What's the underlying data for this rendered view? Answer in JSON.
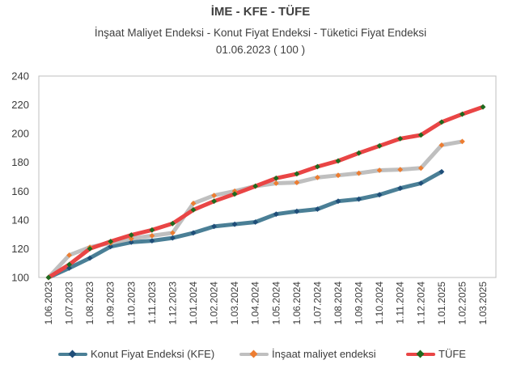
{
  "header": {
    "title": "İME - KFE - TÜFE",
    "subtitle": "İnşaat Maliyet Endeksi - Konut Fiyat Endeksi - Tüketici Fiyat Endeksi",
    "base": "01.06.2023 ( 100 )"
  },
  "chart_data": {
    "type": "line",
    "categories": [
      "1.06.2023",
      "1.07.2023",
      "1.08.2023",
      "1.09.2023",
      "1.10.2023",
      "1.11.2023",
      "1.12.2023",
      "1.01.2024",
      "1.02.2024",
      "1.03.2024",
      "1.04.2024",
      "1.05.2024",
      "1.06.2024",
      "1.07.2024",
      "1.08.2024",
      "1.09.2024",
      "1.10.2024",
      "1.11.2024",
      "1.12.2024",
      "1.01.2025",
      "1.02.2025",
      "1.03.2025"
    ],
    "ylim": [
      100,
      240
    ],
    "yticks": [
      100,
      120,
      140,
      160,
      180,
      200,
      220,
      240
    ],
    "grid": false,
    "legend_position": "bottom",
    "series": [
      {
        "name": "Konut Fiyat Endeksi (KFE)",
        "color": "#4a7f96",
        "marker_color": "#1f4e79",
        "values": [
          100,
          106.5,
          113.5,
          121.5,
          124.5,
          125.5,
          127.5,
          131,
          135.5,
          137,
          138.5,
          144,
          146,
          147.5,
          153,
          154.5,
          157.5,
          162,
          165.5,
          173.5,
          null,
          null
        ]
      },
      {
        "name": "İnşaat maliyet endeksi",
        "color": "#bfbfbf",
        "marker_color": "#ed7d31",
        "values": [
          100,
          115.5,
          121,
          124,
          127,
          129,
          131,
          151.5,
          157,
          160,
          163.5,
          165.5,
          166,
          169.5,
          171,
          172.5,
          174.5,
          175,
          176,
          192,
          194.5,
          null
        ]
      },
      {
        "name": "TÜFE",
        "color": "#e94545",
        "marker_color": "#1e6b1e",
        "values": [
          100,
          109,
          120,
          125,
          129.5,
          133,
          137.5,
          147,
          153,
          158,
          163.5,
          169,
          172,
          177,
          181,
          186.5,
          191.5,
          196.5,
          199,
          208,
          213.5,
          218.5
        ]
      }
    ]
  }
}
